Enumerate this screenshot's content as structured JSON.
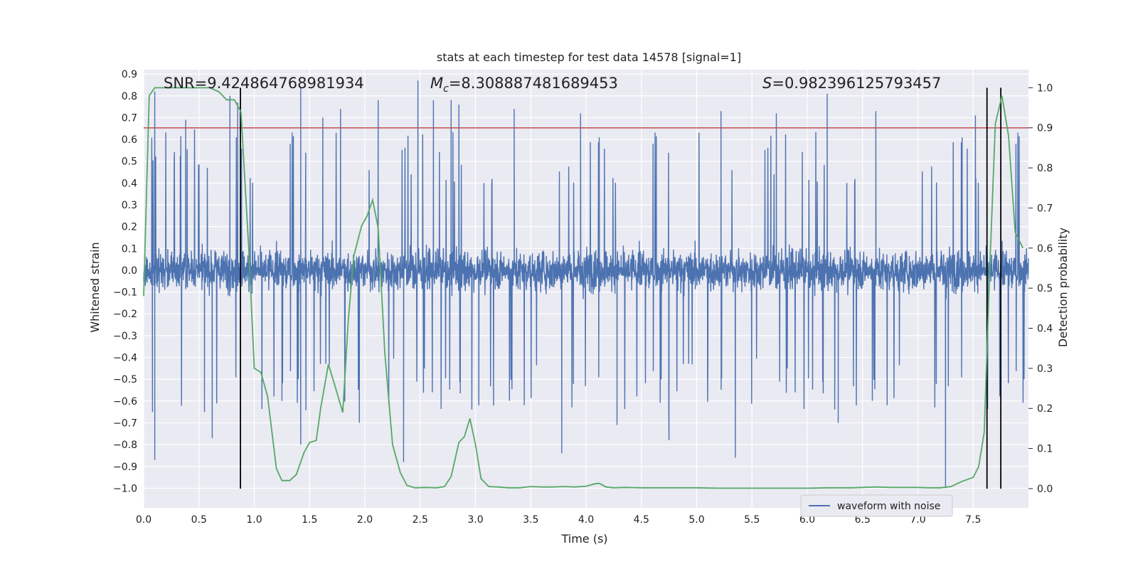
{
  "chart_data": {
    "type": "line",
    "title": "stats at each timestep for test data 14578 [signal=1]",
    "xlabel": "Time (s)",
    "ylabel": "Whitened strain",
    "y2label": "Detection probability",
    "xlim": [
      0.0,
      8.0
    ],
    "ylim": [
      -1.09,
      0.92
    ],
    "y2lim": [
      -0.048,
      1.045
    ],
    "xticks": [
      "0.0",
      "0.5",
      "1.0",
      "1.5",
      "2.0",
      "2.5",
      "3.0",
      "3.5",
      "4.0",
      "4.5",
      "5.0",
      "5.5",
      "6.0",
      "6.5",
      "7.0",
      "7.5"
    ],
    "yticks": [
      "0.9",
      "0.8",
      "0.7",
      "0.6",
      "0.5",
      "0.4",
      "0.3",
      "0.2",
      "0.1",
      "0.0",
      "-0.1",
      "-0.2",
      "-0.3",
      "-0.4",
      "-0.5",
      "-0.6",
      "-0.7",
      "-0.8",
      "-0.9",
      "-1.0"
    ],
    "y2ticks": [
      "1.0",
      "0.9",
      "0.8",
      "0.7",
      "0.6",
      "0.5",
      "0.4",
      "0.3",
      "0.2",
      "0.1",
      "0.0"
    ],
    "grid": true,
    "legend": {
      "position": "bottom-right",
      "entries": [
        "waveform with noise"
      ]
    },
    "annotations": {
      "snr": "SNR=9.424864768981934",
      "mc_symbol": "M",
      "mc_sub": "c",
      "mc_value": "=8.308887481689453",
      "s_symbol": "S",
      "s_value": "=0.982396125793457"
    },
    "threshold": {
      "value": 0.9,
      "color": "#c44e52"
    },
    "vlines": [
      0.875,
      7.625,
      7.75
    ],
    "series": [
      {
        "name": "waveform with noise",
        "color": "#4c72b0",
        "kind": "noise",
        "duration": 8.0,
        "samples": 3600,
        "spikes": [
          [
            0.08,
            -0.65
          ],
          [
            0.1,
            0.82
          ],
          [
            0.1,
            -0.87
          ],
          [
            0.38,
            0.69
          ],
          [
            0.55,
            -0.65
          ],
          [
            0.62,
            -0.77
          ],
          [
            0.78,
            0.8
          ],
          [
            0.85,
            0.77
          ],
          [
            1.25,
            -0.6
          ],
          [
            1.42,
            -0.8
          ],
          [
            1.42,
            0.84
          ],
          [
            1.62,
            0.7
          ],
          [
            1.78,
            0.74
          ],
          [
            1.95,
            -0.7
          ],
          [
            2.12,
            0.78
          ],
          [
            2.35,
            -0.88
          ],
          [
            2.48,
            0.87
          ],
          [
            2.62,
            0.78
          ],
          [
            2.78,
            0.78
          ],
          [
            2.85,
            0.76
          ],
          [
            3.03,
            -0.62
          ],
          [
            3.35,
            0.74
          ],
          [
            3.78,
            -0.84
          ],
          [
            3.95,
            0.72
          ],
          [
            4.28,
            -0.71
          ],
          [
            4.75,
            -0.78
          ],
          [
            5.22,
            0.73
          ],
          [
            5.35,
            -0.86
          ],
          [
            5.72,
            0.72
          ],
          [
            6.18,
            0.81
          ],
          [
            6.28,
            -0.7
          ],
          [
            6.62,
            0.73
          ],
          [
            7.25,
            -1.0
          ],
          [
            7.52,
            0.71
          ]
        ]
      },
      {
        "name": "",
        "color": "#55a868",
        "kind": "probability",
        "points": [
          [
            0.0,
            0.48
          ],
          [
            0.05,
            0.98
          ],
          [
            0.1,
            1.0
          ],
          [
            0.2,
            1.0
          ],
          [
            0.3,
            1.0
          ],
          [
            0.4,
            1.0
          ],
          [
            0.5,
            1.0
          ],
          [
            0.6,
            1.0
          ],
          [
            0.68,
            0.99
          ],
          [
            0.75,
            0.97
          ],
          [
            0.82,
            0.97
          ],
          [
            0.88,
            0.94
          ],
          [
            0.95,
            0.6
          ],
          [
            1.0,
            0.3
          ],
          [
            1.06,
            0.29
          ],
          [
            1.12,
            0.23
          ],
          [
            1.2,
            0.05
          ],
          [
            1.25,
            0.02
          ],
          [
            1.32,
            0.02
          ],
          [
            1.38,
            0.035
          ],
          [
            1.45,
            0.09
          ],
          [
            1.5,
            0.115
          ],
          [
            1.56,
            0.12
          ],
          [
            1.6,
            0.2
          ],
          [
            1.67,
            0.31
          ],
          [
            1.72,
            0.265
          ],
          [
            1.8,
            0.19
          ],
          [
            1.85,
            0.42
          ],
          [
            1.9,
            0.58
          ],
          [
            1.97,
            0.655
          ],
          [
            2.02,
            0.68
          ],
          [
            2.07,
            0.72
          ],
          [
            2.12,
            0.65
          ],
          [
            2.18,
            0.34
          ],
          [
            2.25,
            0.11
          ],
          [
            2.32,
            0.04
          ],
          [
            2.38,
            0.008
          ],
          [
            2.45,
            0.002
          ],
          [
            2.55,
            0.003
          ],
          [
            2.65,
            0.002
          ],
          [
            2.72,
            0.005
          ],
          [
            2.78,
            0.03
          ],
          [
            2.85,
            0.115
          ],
          [
            2.9,
            0.13
          ],
          [
            2.95,
            0.175
          ],
          [
            3.0,
            0.11
          ],
          [
            3.05,
            0.025
          ],
          [
            3.12,
            0.005
          ],
          [
            3.2,
            0.004
          ],
          [
            3.3,
            0.002
          ],
          [
            3.4,
            0.002
          ],
          [
            3.5,
            0.005
          ],
          [
            3.6,
            0.004
          ],
          [
            3.7,
            0.004
          ],
          [
            3.8,
            0.005
          ],
          [
            3.9,
            0.004
          ],
          [
            4.0,
            0.006
          ],
          [
            4.08,
            0.012
          ],
          [
            4.12,
            0.013
          ],
          [
            4.18,
            0.004
          ],
          [
            4.25,
            0.002
          ],
          [
            4.35,
            0.003
          ],
          [
            4.5,
            0.002
          ],
          [
            4.6,
            0.002
          ],
          [
            4.8,
            0.002
          ],
          [
            5.0,
            0.002
          ],
          [
            5.2,
            0.001
          ],
          [
            5.4,
            0.001
          ],
          [
            5.6,
            0.001
          ],
          [
            5.8,
            0.001
          ],
          [
            6.0,
            0.001
          ],
          [
            6.2,
            0.002
          ],
          [
            6.4,
            0.002
          ],
          [
            6.5,
            0.003
          ],
          [
            6.62,
            0.004
          ],
          [
            6.75,
            0.003
          ],
          [
            6.9,
            0.003
          ],
          [
            7.0,
            0.003
          ],
          [
            7.1,
            0.002
          ],
          [
            7.2,
            0.002
          ],
          [
            7.3,
            0.005
          ],
          [
            7.4,
            0.018
          ],
          [
            7.5,
            0.028
          ],
          [
            7.55,
            0.055
          ],
          [
            7.6,
            0.14
          ],
          [
            7.65,
            0.55
          ],
          [
            7.7,
            0.91
          ],
          [
            7.76,
            0.98
          ],
          [
            7.82,
            0.88
          ],
          [
            7.88,
            0.64
          ],
          [
            7.95,
            0.6
          ]
        ]
      }
    ]
  }
}
